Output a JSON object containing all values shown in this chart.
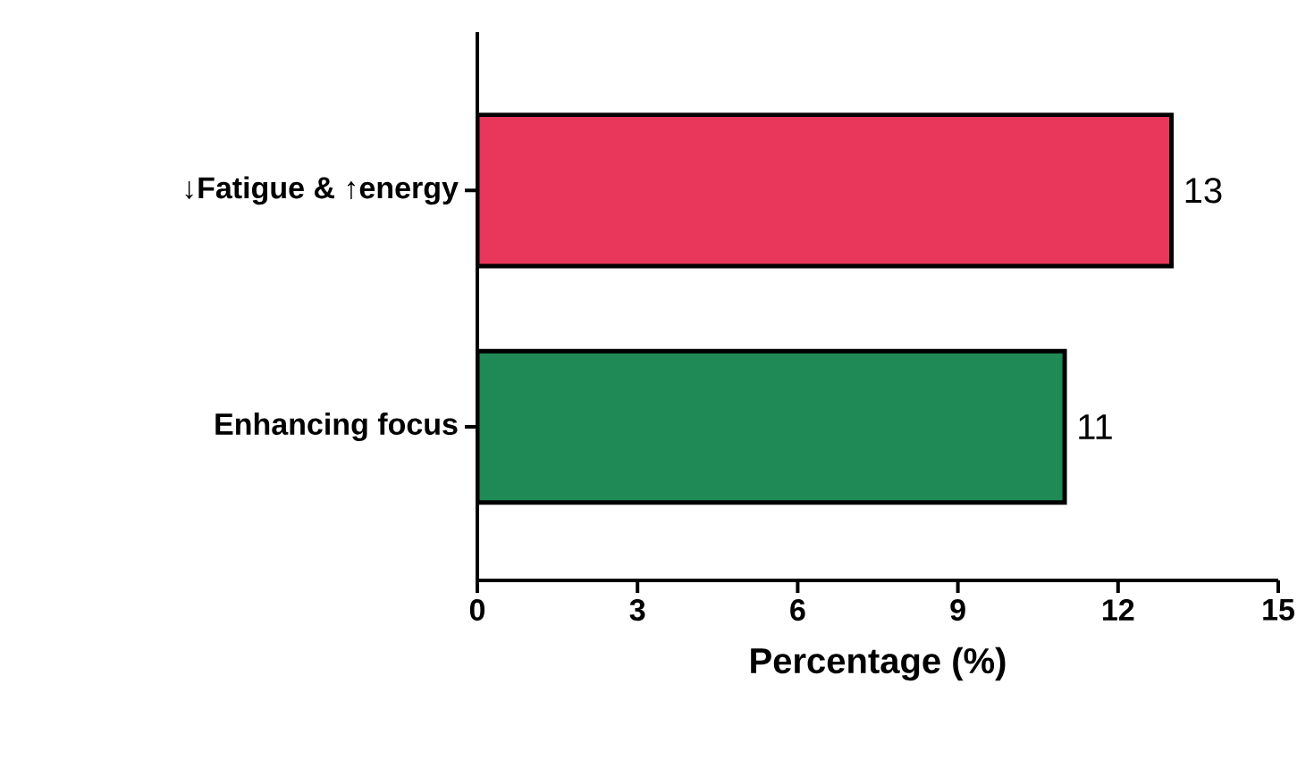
{
  "chart_data": {
    "type": "bar",
    "orientation": "horizontal",
    "categories": [
      "↓Fatigue &  ↑energy",
      "Enhancing focus"
    ],
    "values": [
      13,
      11
    ],
    "colors": [
      "#e8375a",
      "#1f8a55"
    ],
    "xlabel": "Percentage (%)",
    "xlim": [
      0,
      15
    ],
    "xticks": [
      0,
      3,
      6,
      9,
      12,
      15
    ],
    "data_labels": true,
    "grid": false
  }
}
